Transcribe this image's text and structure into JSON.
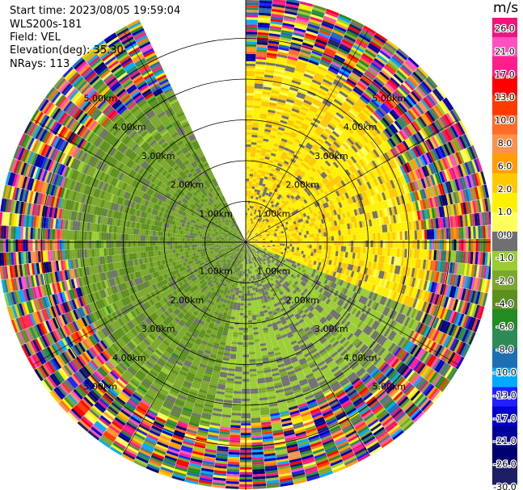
{
  "header": {
    "start_time": "Start time: 2023/08/05 19:59:04",
    "instrument": "WLS200s-181",
    "field": "Field: VEL",
    "elevation": "Elevation(deg): 35.30",
    "nrays": "NRays: 113"
  },
  "chart_data": {
    "type": "ppi",
    "title": "",
    "field": "VEL",
    "units": "m/s",
    "range_rings_km": [
      1.0,
      2.0,
      3.0,
      4.0,
      5.0
    ],
    "range_ring_labels": [
      "1.00km",
      "2.00km",
      "3.00km",
      "4.00km",
      "5.00km"
    ],
    "max_range_km": 6.0,
    "nrays": 113,
    "missing_sector_deg": [
      333,
      360
    ],
    "gate_spacing_km": 0.06,
    "colorbar": {
      "label": "m/s",
      "ticks": [
        "26.0",
        "21.0",
        "17.0",
        "13.0",
        "10.0",
        "8.0",
        "6.0",
        "2.0",
        "1.0",
        "0.0",
        "-1.0",
        "-2.0",
        "-4.0",
        "-6.0",
        "-8.0",
        "-10.0",
        "-13.0",
        "-17.0",
        "-21.0",
        "-26.0",
        "-30.0"
      ],
      "colors": [
        "#f0147c",
        "#ff52c0",
        "#ff1f8c",
        "#ff0000",
        "#ff3a00",
        "#ff6b28",
        "#ff9248",
        "#ff9e00",
        "#ffc800",
        "#fff000",
        "#ffff5a",
        "#707070",
        "#9acd32",
        "#7aa82a",
        "#5c8f1e",
        "#228b22",
        "#2e8b57",
        "#1e6eb4",
        "#00aaff",
        "#2020ff",
        "#0000cd",
        "#00009a",
        "#000070",
        "#1e1e64"
      ],
      "min": -30.0,
      "max": 30.0
    },
    "regions": [
      {
        "name": "receding-northeast",
        "azimuth_deg": [
          0,
          110
        ],
        "max_km": 4.6,
        "mean_ms": 7.0
      },
      {
        "name": "approaching-west",
        "azimuth_deg": [
          190,
          333
        ],
        "max_km": 4.4,
        "mean_ms": -4.5
      },
      {
        "name": "near-zero-south",
        "azimuth_deg": [
          110,
          190
        ],
        "max_km": 4.2,
        "mean_ms": -1.0
      },
      {
        "name": "noise-ring",
        "range_km": [
          4.4,
          6.0
        ],
        "mean_ms": 0.0
      }
    ]
  }
}
